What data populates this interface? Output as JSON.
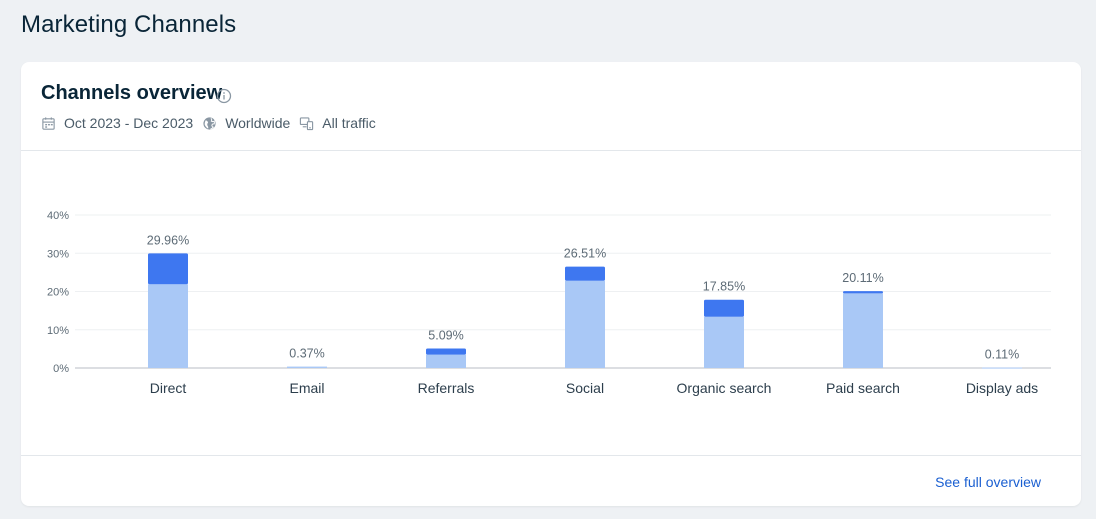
{
  "page": {
    "title": "Marketing Channels"
  },
  "card": {
    "title": "Channels overview",
    "date_range": "Oct 2023 - Dec 2023",
    "region": "Worldwide",
    "traffic": "All traffic",
    "footer_link": "See full overview"
  },
  "colors": {
    "base": "#a9c8f6",
    "top": "#3e77f0",
    "grid": "#eef0f2",
    "axis": "#b8bec4"
  },
  "chart_data": {
    "type": "bar",
    "stacked": true,
    "categories": [
      "Direct",
      "Email",
      "Referrals",
      "Social",
      "Organic search",
      "Paid search",
      "Display ads"
    ],
    "totals": [
      29.96,
      0.37,
      5.09,
      26.51,
      17.85,
      20.11,
      0.11
    ],
    "total_labels": [
      "29.96%",
      "0.37%",
      "5.09%",
      "26.51%",
      "17.85%",
      "20.11%",
      "0.11%"
    ],
    "series": [
      {
        "values": [
          21.9,
          0.37,
          3.5,
          22.8,
          13.4,
          19.5,
          0.11
        ]
      },
      {
        "values": [
          8.06,
          0,
          1.59,
          3.71,
          4.45,
          0.61,
          0
        ]
      }
    ],
    "yticks": [
      0,
      10,
      20,
      30,
      40
    ],
    "ytick_labels": [
      "0%",
      "10%",
      "20%",
      "30%",
      "40%"
    ],
    "ylim": [
      0,
      40
    ],
    "grid": true
  }
}
